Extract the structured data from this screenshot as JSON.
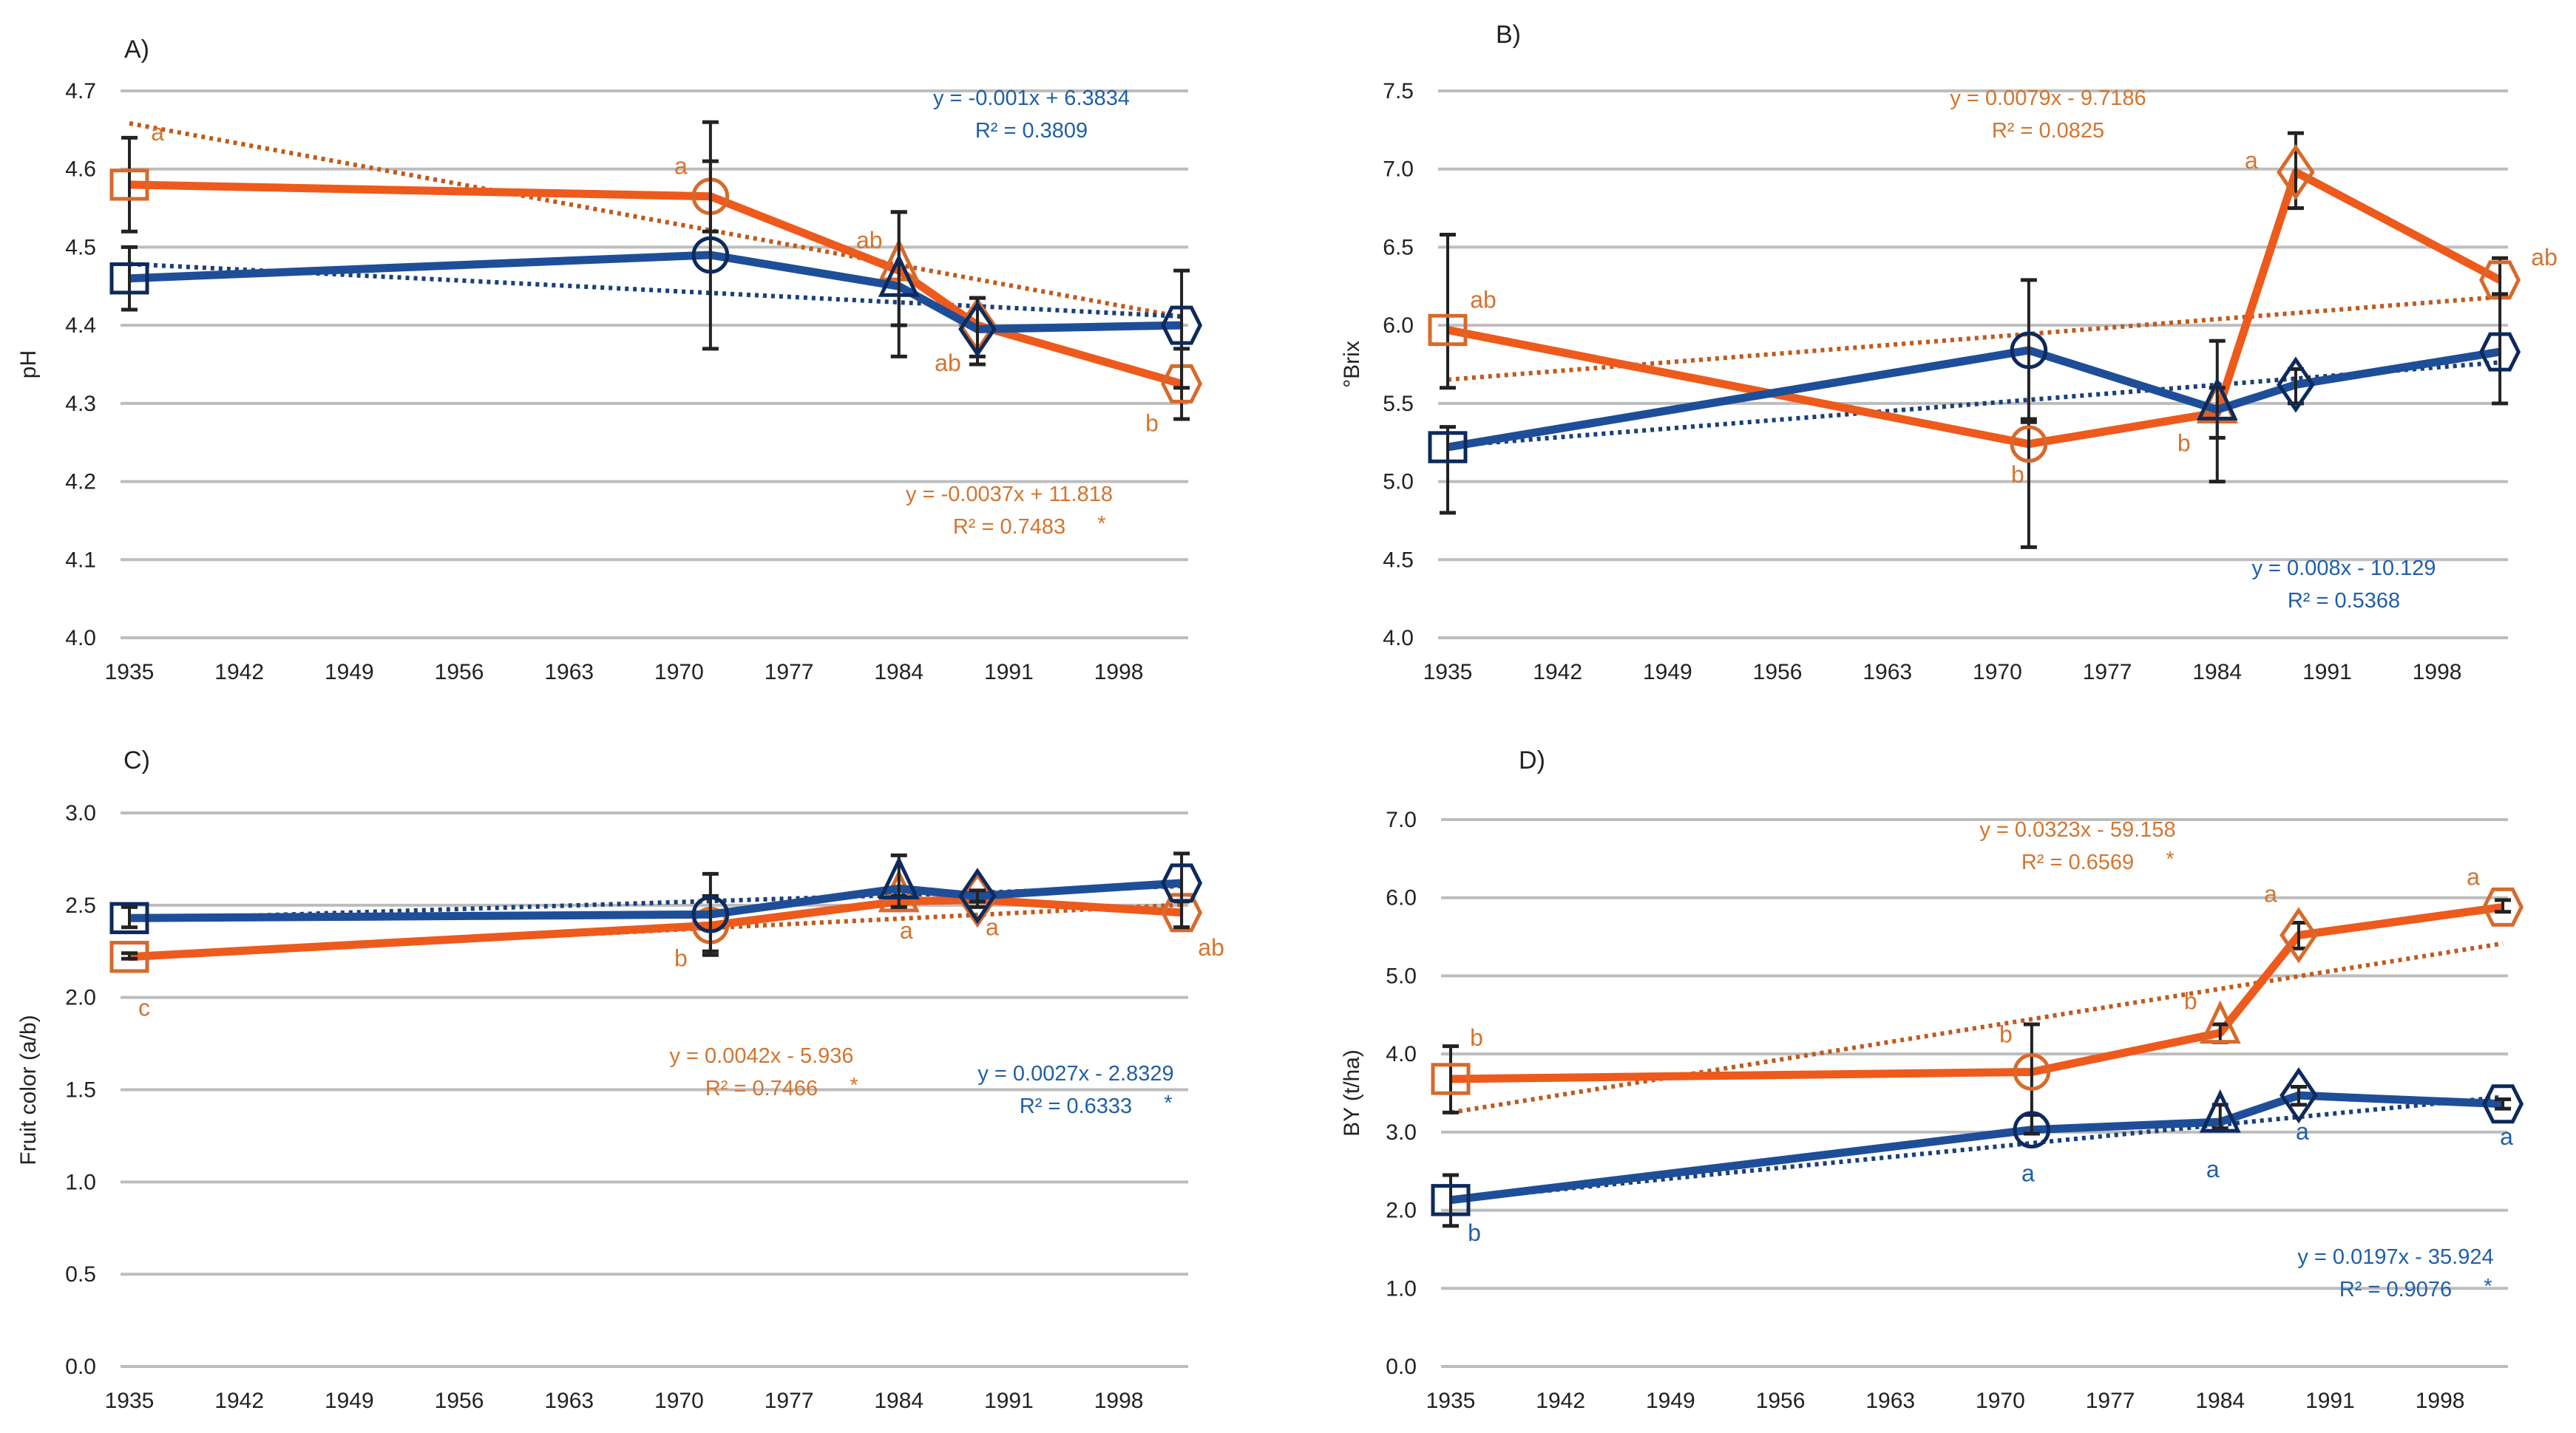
{
  "figure": {
    "colors": {
      "series_blue": "#1f4e99",
      "marker_blue": "#0d2a5c",
      "series_orange": "#ed5a1c",
      "marker_orange": "#d66a2c",
      "eq_blue": "#1f5fa8",
      "eq_orange": "#d4742e",
      "errorbar": "#222222",
      "grid": "#bdbdbd"
    }
  },
  "chart_data": [
    {
      "id": "A",
      "type": "line",
      "title": "A)",
      "xlabel": "",
      "ylabel": "pH",
      "ylim": [
        4.0,
        4.7
      ],
      "yticks": [
        "4.0",
        "4.1",
        "4.2",
        "4.3",
        "4.4",
        "4.5",
        "4.6",
        "4.7"
      ],
      "ytick_values": [
        4.0,
        4.1,
        4.2,
        4.3,
        4.4,
        4.5,
        4.6,
        4.7
      ],
      "xlim": [
        1935,
        2002.4
      ],
      "xticks": [
        "1935",
        "1942",
        "1949",
        "1956",
        "1963",
        "1970",
        "1977",
        "1984",
        "1991",
        "1998"
      ],
      "xtick_values": [
        1935,
        1942,
        1949,
        1956,
        1963,
        1970,
        1977,
        1984,
        1991,
        1998
      ],
      "grid": true,
      "x": [
        1935,
        1972,
        1984,
        1989,
        2002
      ],
      "markers": [
        "square",
        "circle",
        "triangle",
        "diamond",
        "hexagon"
      ],
      "series": [
        {
          "name": "orange",
          "color_key": "series_orange",
          "values": [
            4.58,
            4.565,
            4.47,
            4.4,
            4.325
          ],
          "error_low": [
            4.52,
            4.52,
            4.4,
            4.35,
            4.28
          ],
          "error_high": [
            4.64,
            4.61,
            4.545,
            4.435,
            4.37
          ],
          "letters": [
            "a",
            "a",
            "ab",
            "ab",
            "b"
          ],
          "trend": {
            "slope": -0.0037,
            "intercept": 11.818
          },
          "equation": "y = -0.0037x + 11.818",
          "r2": "R² = 0.7483",
          "significance": "*"
        },
        {
          "name": "blue",
          "color_key": "series_blue",
          "values": [
            4.46,
            4.49,
            4.45,
            4.395,
            4.4
          ],
          "error_low": [
            4.42,
            4.37,
            4.36,
            4.36,
            4.32
          ],
          "error_high": [
            4.5,
            4.66,
            4.545,
            4.435,
            4.47
          ],
          "letters": [
            "",
            "",
            "",
            "",
            ""
          ],
          "trend": {
            "slope": -0.001,
            "intercept": 6.4134
          },
          "equation": "y = -0.001x + 6.3834",
          "r2": "R² = 0.3809",
          "significance": ""
        }
      ]
    },
    {
      "id": "B",
      "type": "line",
      "title": "B)",
      "xlabel": "",
      "ylabel": "°Brix",
      "ylim": [
        4.0,
        7.5
      ],
      "yticks": [
        "4.0",
        "4.5",
        "5.0",
        "5.5",
        "6.0",
        "6.5",
        "7.0",
        "7.5"
      ],
      "ytick_values": [
        4.0,
        4.5,
        5.0,
        5.5,
        6.0,
        6.5,
        7.0,
        7.5
      ],
      "xlim": [
        1935,
        2002.4
      ],
      "xticks": [
        "1935",
        "1942",
        "1949",
        "1956",
        "1963",
        "1970",
        "1977",
        "1984",
        "1991",
        "1998"
      ],
      "xtick_values": [
        1935,
        1942,
        1949,
        1956,
        1963,
        1970,
        1977,
        1984,
        1991,
        1998
      ],
      "grid": true,
      "x": [
        1935,
        1972,
        1984,
        1989,
        2002
      ],
      "markers": [
        "square",
        "circle",
        "triangle",
        "diamond",
        "hexagon"
      ],
      "series": [
        {
          "name": "orange",
          "color_key": "series_orange",
          "values": [
            5.97,
            5.24,
            5.44,
            6.98,
            6.29
          ],
          "error_low": [
            5.6,
            4.58,
            5.28,
            6.75,
            6.18
          ],
          "error_high": [
            6.58,
            5.38,
            5.6,
            7.23,
            6.43
          ],
          "letters": [
            "ab",
            "b",
            "b",
            "a",
            "ab"
          ],
          "trend": {
            "slope": 0.0079,
            "intercept": -9.6344
          },
          "equation": "y = 0.0079x - 9.7186",
          "r2": "R² = 0.0825",
          "significance": ""
        },
        {
          "name": "blue",
          "color_key": "series_blue",
          "values": [
            5.22,
            5.84,
            5.46,
            5.62,
            5.83
          ],
          "error_low": [
            4.8,
            5.4,
            5.0,
            5.5,
            5.5
          ],
          "error_high": [
            5.35,
            6.29,
            5.9,
            5.72,
            6.2
          ],
          "letters": [
            "",
            "",
            "",
            "",
            ""
          ],
          "trend": {
            "slope": 0.008,
            "intercept": -10.2532
          },
          "equation": "y = 0.008x - 10.129",
          "r2": "R² = 0.5368",
          "significance": ""
        }
      ]
    },
    {
      "id": "C",
      "type": "line",
      "title": "C)",
      "xlabel": "",
      "ylabel": "Fruit color (a/b)",
      "ylim": [
        0.0,
        3.0
      ],
      "yticks": [
        "0.0",
        "0.5",
        "1.0",
        "1.5",
        "2.0",
        "2.5",
        "3.0"
      ],
      "ytick_values": [
        0.0,
        0.5,
        1.0,
        1.5,
        2.0,
        2.5,
        3.0
      ],
      "xlim": [
        1935,
        2002.4
      ],
      "xticks": [
        "1935",
        "1942",
        "1949",
        "1956",
        "1963",
        "1970",
        "1977",
        "1984",
        "1991",
        "1998"
      ],
      "xtick_values": [
        1935,
        1942,
        1949,
        1956,
        1963,
        1970,
        1977,
        1984,
        1991,
        1998
      ],
      "grid": true,
      "x": [
        1935,
        1972,
        1984,
        1989,
        2002
      ],
      "markers": [
        "square",
        "circle",
        "triangle",
        "diamond",
        "hexagon"
      ],
      "series": [
        {
          "name": "orange",
          "color_key": "series_orange",
          "values": [
            2.22,
            2.39,
            2.52,
            2.53,
            2.46
          ],
          "error_low": [
            2.21,
            2.25,
            2.49,
            2.49,
            2.38
          ],
          "error_high": [
            2.24,
            2.55,
            2.55,
            2.57,
            2.52
          ],
          "letters": [
            "c",
            "b",
            "a",
            "a",
            "ab"
          ],
          "trend": {
            "slope": 0.0042,
            "intercept": -5.906
          },
          "equation": "y = 0.0042x - 5.936",
          "r2": "R² = 0.7466",
          "significance": "*"
        },
        {
          "name": "blue",
          "color_key": "series_blue",
          "values": [
            2.43,
            2.45,
            2.59,
            2.55,
            2.62
          ],
          "error_low": [
            2.38,
            2.23,
            2.49,
            2.52,
            2.38
          ],
          "error_high": [
            2.49,
            2.67,
            2.77,
            2.58,
            2.78
          ],
          "letters": [
            "",
            "",
            "",
            "",
            ""
          ],
          "trend": {
            "slope": 0.0027,
            "intercept": -2.802
          },
          "equation": "y = 0.0027x - 2.8329",
          "r2": "R² = 0.6333",
          "significance": "*"
        }
      ]
    },
    {
      "id": "D",
      "type": "line",
      "title": "D)",
      "xlabel": "",
      "ylabel": "BY (t/ha)",
      "ylim": [
        0.0,
        7.0
      ],
      "yticks": [
        "0.0",
        "1.0",
        "2.0",
        "3.0",
        "4.0",
        "5.0",
        "6.0",
        "7.0"
      ],
      "ytick_values": [
        0.0,
        1.0,
        2.0,
        3.0,
        4.0,
        5.0,
        6.0,
        7.0
      ],
      "xlim": [
        1935,
        2002.4
      ],
      "xticks": [
        "1935",
        "1942",
        "1949",
        "1956",
        "1963",
        "1970",
        "1977",
        "1984",
        "1991",
        "1998"
      ],
      "xtick_values": [
        1935,
        1942,
        1949,
        1956,
        1963,
        1970,
        1977,
        1984,
        1991,
        1998
      ],
      "grid": true,
      "x": [
        1935,
        1972,
        1984,
        1989,
        2002
      ],
      "markers": [
        "square",
        "circle",
        "triangle",
        "diamond",
        "hexagon"
      ],
      "series": [
        {
          "name": "orange",
          "color_key": "series_orange",
          "values": [
            3.68,
            3.77,
            4.27,
            5.52,
            5.88
          ],
          "error_low": [
            3.25,
            3.0,
            4.15,
            5.35,
            5.82
          ],
          "error_high": [
            4.1,
            4.38,
            4.38,
            5.68,
            5.97
          ],
          "letters": [
            "b",
            "b",
            "b",
            "a",
            "a"
          ],
          "trend": {
            "slope": 0.0323,
            "intercept": -59.25
          },
          "equation": "y = 0.0323x - 59.158",
          "r2": "R² = 0.6569",
          "significance": "*"
        },
        {
          "name": "blue",
          "color_key": "series_blue",
          "values": [
            2.13,
            3.03,
            3.13,
            3.47,
            3.36
          ],
          "error_low": [
            1.8,
            2.98,
            3.05,
            3.35,
            3.3
          ],
          "error_high": [
            2.45,
            3.22,
            3.35,
            3.58,
            3.42
          ],
          "letters": [
            "b",
            "a",
            "a",
            "a",
            "a"
          ],
          "trend": {
            "slope": 0.0197,
            "intercept": -35.99
          },
          "equation": "y = 0.0197x - 35.924",
          "r2": "R² = 0.9076",
          "significance": "*"
        }
      ]
    }
  ]
}
